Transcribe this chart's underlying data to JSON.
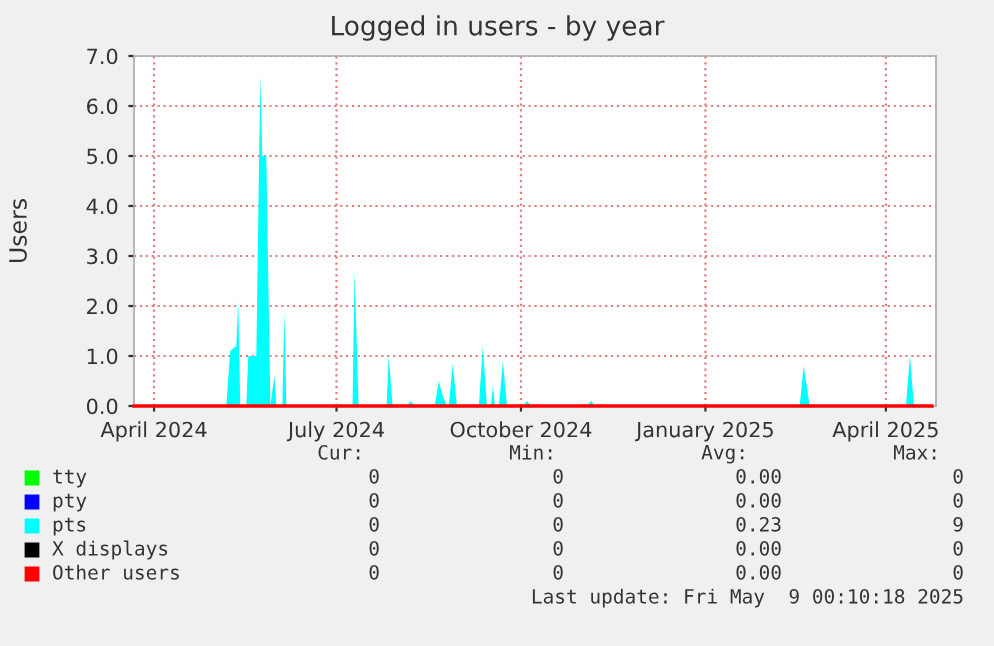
{
  "chart_data": {
    "type": "area",
    "title": "Logged in users - by year",
    "ylabel": "Users",
    "xlim": [
      "2024-03-22",
      "2025-04-26"
    ],
    "xticks": [
      {
        "value": "2024-04-01",
        "label": "April 2024"
      },
      {
        "value": "2024-07-01",
        "label": "July 2024"
      },
      {
        "value": "2024-10-01",
        "label": "October 2024"
      },
      {
        "value": "2025-01-01",
        "label": "January 2025"
      },
      {
        "value": "2025-04-01",
        "label": "April 2025"
      }
    ],
    "ylim": [
      0,
      7
    ],
    "yticks": [
      {
        "value": 0,
        "label": "0.0"
      },
      {
        "value": 1,
        "label": "1.0"
      },
      {
        "value": 2,
        "label": "2.0"
      },
      {
        "value": 3,
        "label": "3.0"
      },
      {
        "value": 4,
        "label": "4.0"
      },
      {
        "value": 5,
        "label": "5.0"
      },
      {
        "value": 6,
        "label": "6.0"
      },
      {
        "value": 7,
        "label": "7.0"
      }
    ],
    "grid": true,
    "legend": "bottom",
    "series": [
      {
        "name": "tty",
        "color": "#00ff00"
      },
      {
        "name": "pty",
        "color": "#0000ff"
      },
      {
        "name": "pts",
        "color": "#00ffff",
        "x": [
          "2024-03-22",
          "2024-05-07",
          "2024-05-09",
          "2024-05-12",
          "2024-05-13",
          "2024-05-14",
          "2024-05-17",
          "2024-05-18",
          "2024-05-22",
          "2024-05-24",
          "2024-05-25",
          "2024-05-27",
          "2024-05-29",
          "2024-05-31",
          "2024-06-01",
          "2024-06-04",
          "2024-06-05",
          "2024-06-06",
          "2024-07-02",
          "2024-07-03",
          "2024-07-04",
          "2024-07-09",
          "2024-07-10",
          "2024-07-12",
          "2024-07-26",
          "2024-07-27",
          "2024-07-29",
          "2024-08-05",
          "2024-08-07",
          "2024-08-09",
          "2024-08-19",
          "2024-08-21",
          "2024-08-23",
          "2024-08-25",
          "2024-08-26",
          "2024-08-28",
          "2024-08-30",
          "2024-09-10",
          "2024-09-12",
          "2024-09-14",
          "2024-09-16",
          "2024-09-17",
          "2024-09-18",
          "2024-09-20",
          "2024-09-22",
          "2024-09-24",
          "2024-10-02",
          "2024-10-04",
          "2024-10-06",
          "2024-11-03",
          "2024-11-05",
          "2024-11-07",
          "2025-02-17",
          "2025-02-19",
          "2025-02-22",
          "2025-04-11",
          "2025-04-13",
          "2025-04-15",
          "2025-04-24"
        ],
        "values": [
          0,
          0,
          1.1,
          1.2,
          2.1,
          0,
          0,
          1.0,
          1.0,
          6.6,
          5.0,
          5.0,
          0,
          0.6,
          0,
          0,
          1.9,
          0,
          0,
          0.05,
          0,
          0,
          2.7,
          0,
          0,
          1.0,
          0,
          0,
          0.1,
          0,
          0,
          0.5,
          0.2,
          0,
          0,
          0.85,
          0,
          0,
          1.2,
          0,
          0,
          0.4,
          0,
          0,
          0.9,
          0,
          0,
          0.1,
          0,
          0,
          0.1,
          0,
          0,
          0.8,
          0,
          0,
          1.0,
          0,
          0
        ]
      },
      {
        "name": "X displays",
        "color": "#000000"
      },
      {
        "name": "Other users",
        "color": "#ff0000",
        "type": "line",
        "x": [
          "2024-03-22",
          "2025-04-24"
        ],
        "values": [
          0,
          0
        ]
      }
    ],
    "annotations": [
      "Cur:",
      "Min:",
      "Avg:",
      "Max:",
      "0",
      "0",
      "0.00",
      "0",
      "0",
      "0",
      "0.00",
      "0",
      "0",
      "0",
      "0.23",
      "9",
      "0",
      "0",
      "0.00",
      "0",
      "0",
      "0",
      "0.00",
      "0",
      "Last update: Fri May  9 00:10:18 2025"
    ]
  }
}
